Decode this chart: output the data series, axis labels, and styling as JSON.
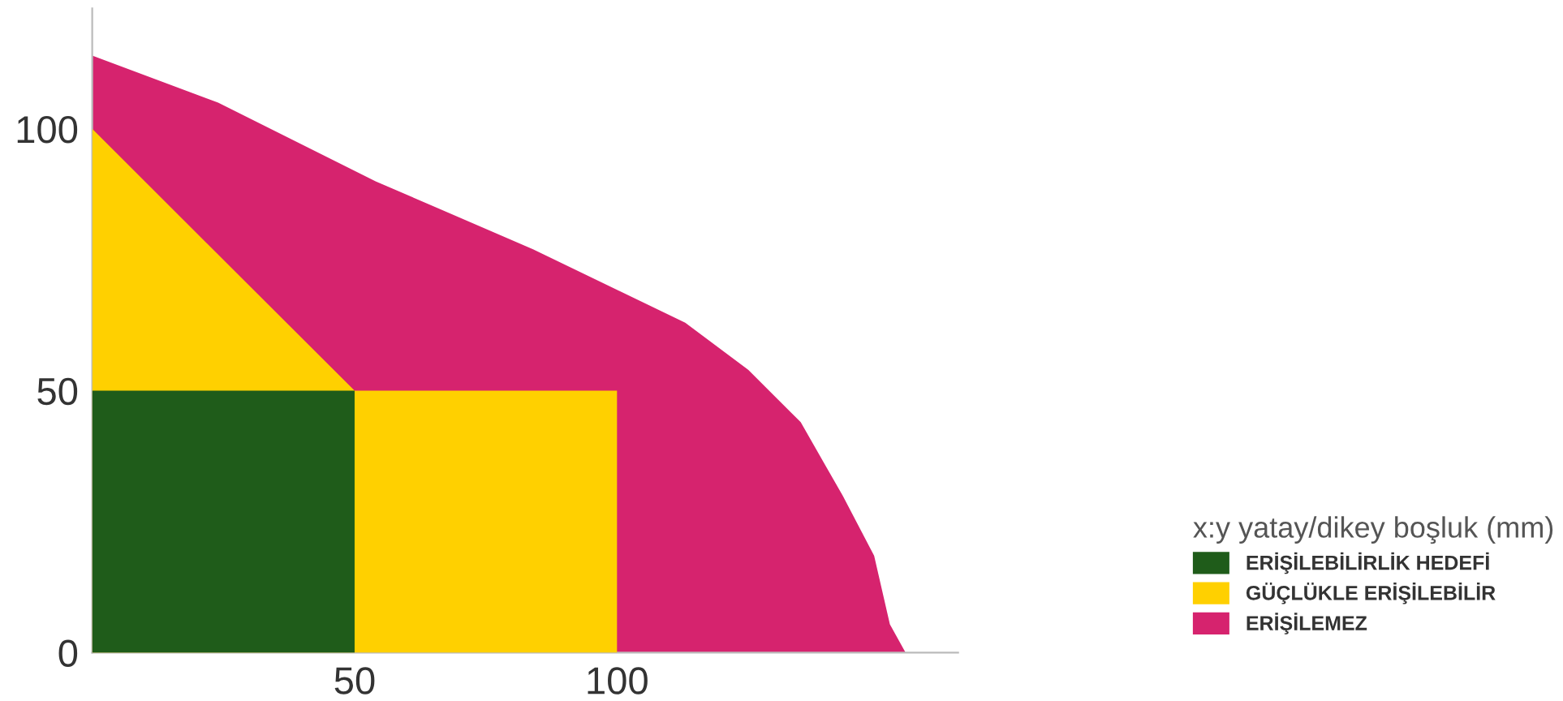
{
  "chart_data": {
    "type": "area",
    "legend_title": "x:y yatay/dikey boşluk (mm)",
    "legend": "right",
    "grid": false,
    "xlim": [
      0,
      165
    ],
    "ylim": [
      0,
      123
    ],
    "xticks": [
      50,
      100
    ],
    "yticks": [
      0,
      50,
      100
    ],
    "series": [
      {
        "name": "ERİŞİLEBİLİRLİK HEDEFİ",
        "color": "#1f5c1a",
        "x": [
          0,
          50
        ],
        "values": [
          50,
          50
        ]
      },
      {
        "name": "GÜÇLÜKLE ERİŞİLEBİLİR",
        "color": "#ffd000",
        "x": [
          0,
          50,
          100,
          100
        ],
        "values": [
          100,
          50,
          50,
          0
        ]
      },
      {
        "name": "ERİŞİLEMEZ",
        "color": "#d6236e",
        "x": [
          0,
          24,
          54,
          84,
          113,
          125,
          135,
          143,
          149,
          152,
          155
        ],
        "values": [
          114,
          105,
          90,
          77,
          63,
          54,
          44,
          30,
          18.5,
          5.4,
          0
        ]
      }
    ]
  }
}
